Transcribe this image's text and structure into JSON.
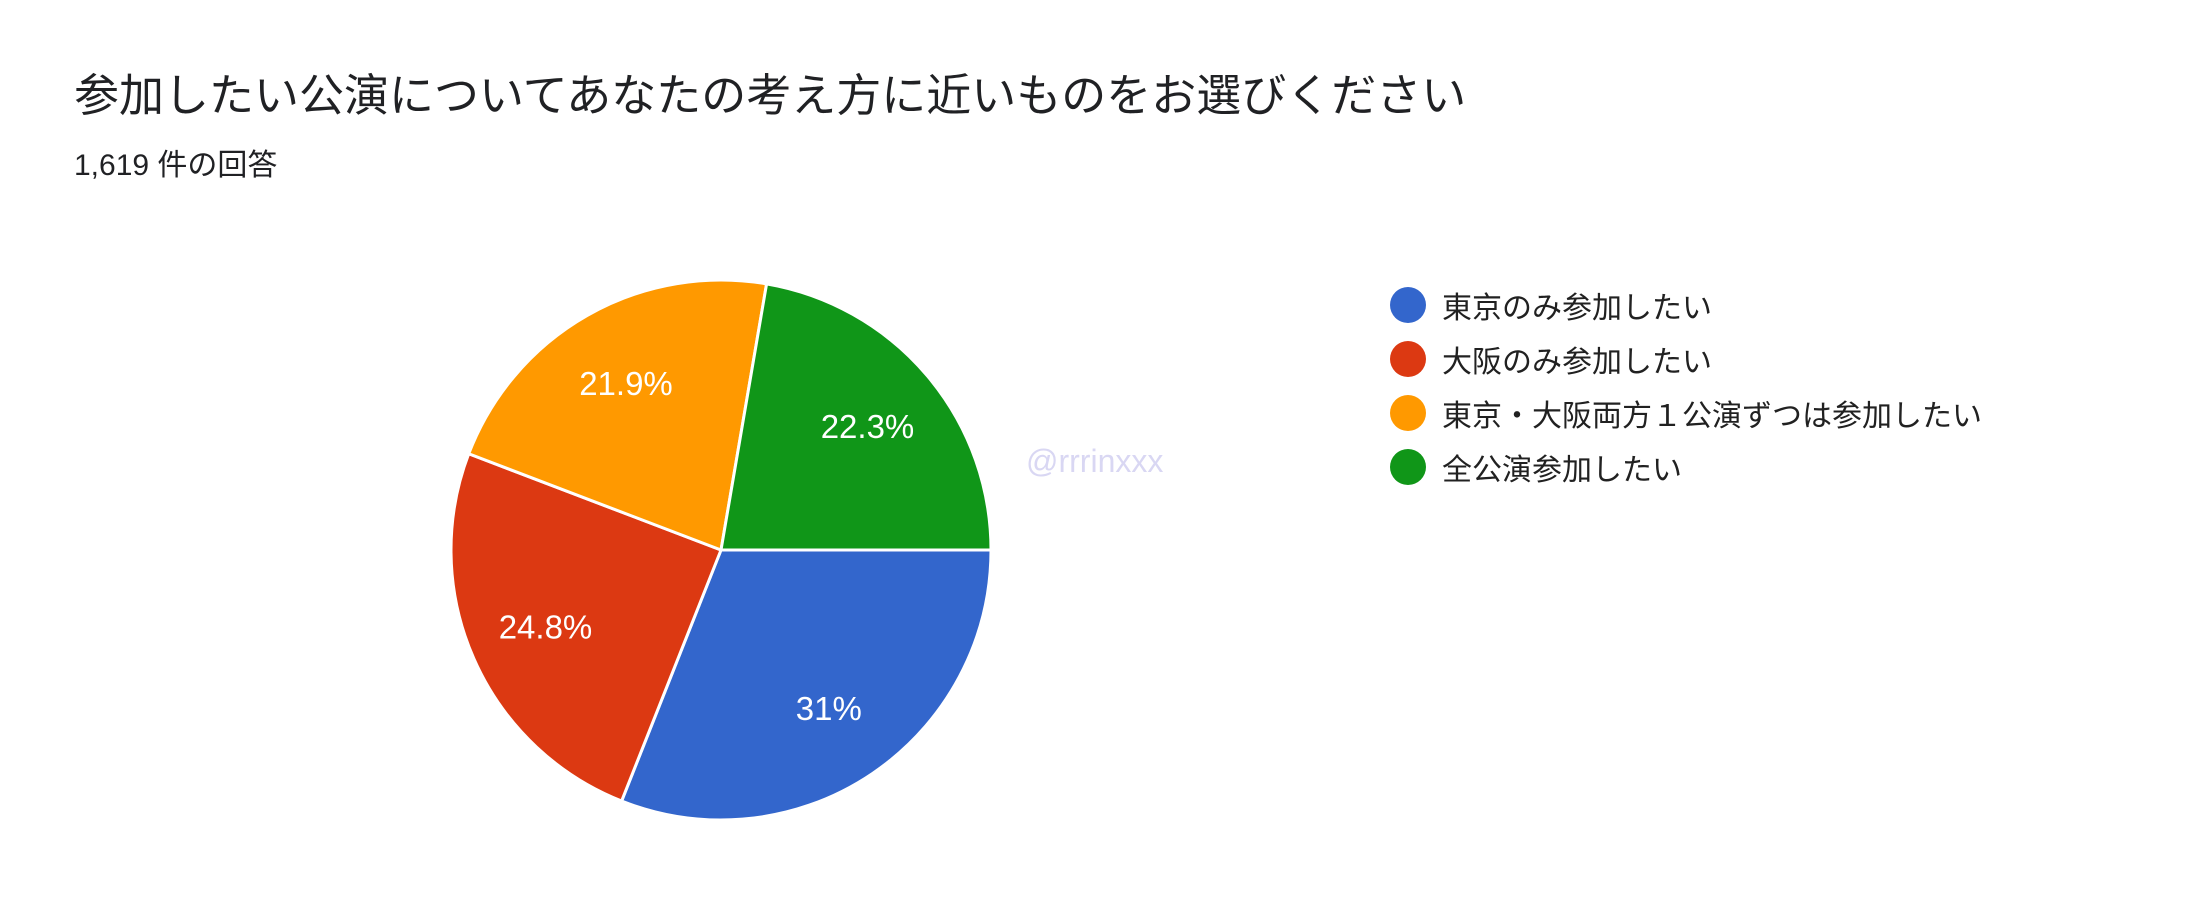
{
  "chart_data": {
    "type": "pie",
    "title": "参加したい公演についてあなたの考え方に近いものをお選びください",
    "subtitle": "1,619 件の回答",
    "response_count": "1,619",
    "start_angle_deg": 90,
    "direction": "clockwise",
    "legend_position": "right",
    "background_color": "#ffffff",
    "slice_border_color": "#ffffff",
    "label_color": "#ffffff",
    "slices": [
      {
        "label": "東京のみ参加したい",
        "value_pct": 31,
        "display": "31%",
        "color": "#3366CC"
      },
      {
        "label": "大阪のみ参加したい",
        "value_pct": 24.8,
        "display": "24.8%",
        "color": "#DC3912"
      },
      {
        "label": "東京・大阪両方１公演ずつは参加したい",
        "value_pct": 21.9,
        "display": "21.9%",
        "color": "#FF9900"
      },
      {
        "label": "全公演参加したい",
        "value_pct": 22.3,
        "display": "22.3%",
        "color": "#109618"
      }
    ],
    "watermark": "@rrrinxxx"
  }
}
